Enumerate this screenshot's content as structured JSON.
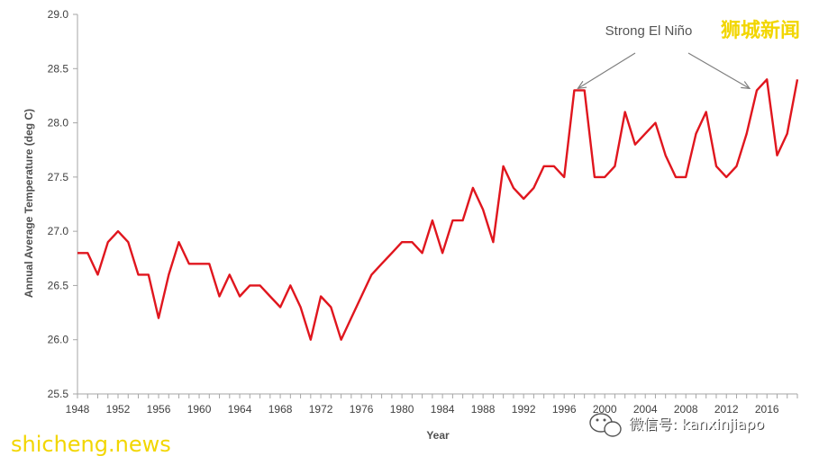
{
  "chart_data": {
    "type": "line",
    "title": "",
    "xlabel": "Year",
    "ylabel": "Annual Average Temperature (deg C)",
    "xlim": [
      1948,
      2019
    ],
    "ylim": [
      25.5,
      29.0
    ],
    "x_ticks": [
      1948,
      1952,
      1956,
      1960,
      1964,
      1968,
      1972,
      1976,
      1980,
      1984,
      1988,
      1992,
      1996,
      2000,
      2004,
      2008,
      2012,
      2016
    ],
    "x_tick_labels": [
      "1948",
      "1952",
      "1956",
      "1960",
      "1964",
      "1968",
      "1972",
      "1976",
      "1980",
      "1984",
      "1988",
      "1992",
      "1996",
      "2000",
      "2004",
      "2008",
      "2012",
      "2016"
    ],
    "y_ticks": [
      25.5,
      26.0,
      26.5,
      27.0,
      27.5,
      28.0,
      28.5,
      29.0
    ],
    "y_tick_labels": [
      "25.5",
      "26.0",
      "26.5",
      "27.0",
      "27.5",
      "28.0",
      "28.5",
      "29.0"
    ],
    "grid": false,
    "legend": "none",
    "series": [
      {
        "color": "#e0161e",
        "x": [
          1948,
          1949,
          1950,
          1951,
          1952,
          1953,
          1954,
          1955,
          1956,
          1957,
          1958,
          1959,
          1960,
          1961,
          1962,
          1963,
          1964,
          1965,
          1966,
          1967,
          1968,
          1969,
          1970,
          1971,
          1972,
          1973,
          1974,
          1975,
          1976,
          1977,
          1978,
          1979,
          1980,
          1981,
          1982,
          1983,
          1984,
          1985,
          1986,
          1987,
          1988,
          1989,
          1990,
          1991,
          1992,
          1993,
          1994,
          1995,
          1996,
          1997,
          1998,
          1999,
          2000,
          2001,
          2002,
          2003,
          2004,
          2005,
          2006,
          2007,
          2008,
          2009,
          2010,
          2011,
          2012,
          2013,
          2014,
          2015,
          2016,
          2017,
          2018,
          2019
        ],
        "y": [
          26.8,
          26.8,
          26.6,
          26.9,
          27.0,
          26.9,
          26.6,
          26.6,
          26.2,
          26.6,
          26.9,
          26.7,
          26.7,
          26.7,
          26.4,
          26.6,
          26.4,
          26.5,
          26.5,
          26.4,
          26.3,
          26.5,
          26.3,
          26.0,
          26.4,
          26.3,
          26.0,
          26.2,
          26.4,
          26.6,
          26.7,
          26.8,
          26.9,
          26.9,
          26.8,
          27.1,
          26.8,
          27.1,
          27.1,
          27.4,
          27.2,
          26.9,
          27.6,
          27.4,
          27.3,
          27.4,
          27.6,
          27.6,
          27.5,
          28.3,
          28.3,
          27.5,
          27.5,
          27.6,
          28.1,
          27.8,
          27.9,
          28.0,
          27.7,
          27.5,
          27.5,
          27.9,
          28.1,
          27.6,
          27.5,
          27.6,
          27.9,
          28.3,
          28.4,
          27.7,
          27.9,
          28.4
        ]
      }
    ],
    "annotations": [
      {
        "text": "Strong El Niño",
        "arrows_to": [
          [
            1997,
            28.3
          ],
          [
            2015,
            28.3
          ]
        ]
      }
    ]
  },
  "watermarks": {
    "top_right": "狮城新闻",
    "bottom_left": "shicheng.news",
    "bottom_right": "微信号: kanxinjiapo"
  },
  "colors": {
    "line": "#e0161e",
    "axis": "#a6a6a6",
    "watermark_yellow": "#f2d600"
  }
}
